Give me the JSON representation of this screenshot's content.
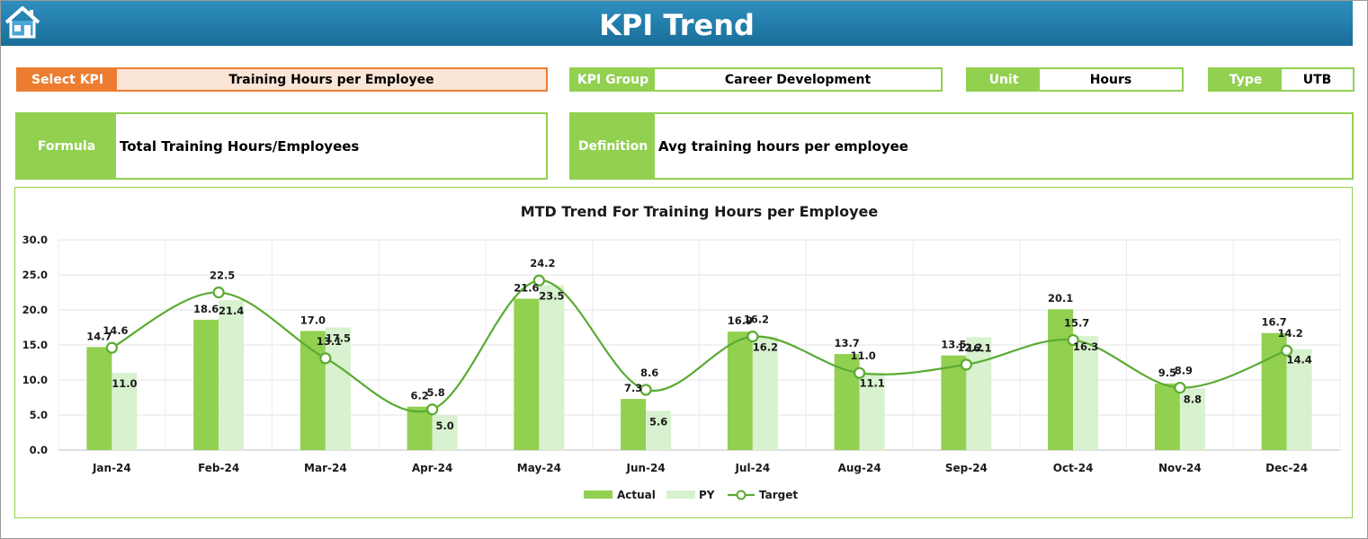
{
  "header": {
    "title": "KPI Trend",
    "home_icon": "home-icon"
  },
  "select_kpi": {
    "label": "Select KPI",
    "value": "Training Hours per Employee"
  },
  "kpi_group": {
    "label": "KPI Group",
    "value": "Career Development"
  },
  "unit": {
    "label": "Unit",
    "value": "Hours"
  },
  "type": {
    "label": "Type",
    "value": "UTB"
  },
  "formula": {
    "label": "Formula",
    "value": "Total Training Hours/Employees"
  },
  "definition": {
    "label": "Definition",
    "value": "Avg training hours per employee"
  },
  "colors": {
    "orange": "#ed7d31",
    "green": "#92d050",
    "pale_orange": "#fbe5d6",
    "pale_green": "#d8f1cf",
    "target_line": "#5aab32",
    "header": "#1f7aa8"
  },
  "chart_data": {
    "type": "bar",
    "title": "MTD Trend For Training Hours per Employee",
    "categories": [
      "Jan-24",
      "Feb-24",
      "Mar-24",
      "Apr-24",
      "May-24",
      "Jun-24",
      "Jul-24",
      "Aug-24",
      "Sep-24",
      "Oct-24",
      "Nov-24",
      "Dec-24"
    ],
    "ylim": [
      0,
      30
    ],
    "yticks": [
      "0.0",
      "5.0",
      "10.0",
      "15.0",
      "20.0",
      "25.0",
      "30.0"
    ],
    "grid": true,
    "legend": "bottom",
    "series": [
      {
        "name": "Actual",
        "kind": "bar",
        "values": [
          14.7,
          18.6,
          17.0,
          6.2,
          21.6,
          7.3,
          16.9,
          13.7,
          13.5,
          20.1,
          9.5,
          16.7
        ]
      },
      {
        "name": "PY",
        "kind": "bar",
        "values": [
          11.0,
          21.4,
          17.5,
          5.0,
          23.5,
          5.6,
          16.2,
          11.1,
          16.1,
          16.3,
          8.8,
          14.4
        ]
      },
      {
        "name": "Target",
        "kind": "line",
        "values": [
          14.6,
          22.5,
          13.1,
          5.8,
          24.2,
          8.6,
          16.2,
          11.0,
          12.2,
          15.7,
          8.9,
          14.2
        ]
      }
    ]
  }
}
